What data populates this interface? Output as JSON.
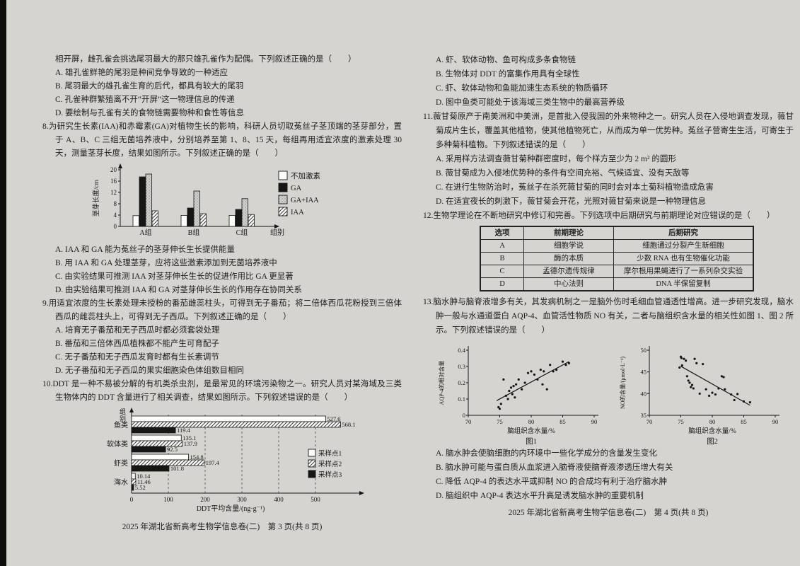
{
  "left": {
    "q7": {
      "lead": "相开屏，雌孔雀会挑选尾羽最大的那只雄孔雀作为配偶。下列叙述正确的是（　　）",
      "options": [
        "A. 雄孔雀鲜艳的尾羽是种间竞争导致的一种适应",
        "B. 尾羽最大的雄孔雀生育的后代，都具有较大的尾羽",
        "C. 孔雀种群繁殖离不开“开屏”这一物理信息的传递",
        "D. 要绘制与孔雀有关的食物链需要物种和食性等信息"
      ]
    },
    "q8": {
      "lead": "8.为研究生长素(IAA)和赤霉素(GA)对植物生长的影响，科研人员切取菟丝子茎顶端的茎芽部分，置于 A、B、C 三组无菌培养液中，分别培养至第 1、8、15 天，每组再用适宜浓度的激素处理 30 天，测量茎芽长度，结果如图所示。下列叙述正确的是（　　）",
      "options": [
        "A. IAA 和 GA 能为菟丝子的茎芽伸长生长提供能量",
        "B. 用 IAA 和 GA 处理茎芽，应将这些激素添加到无菌培养液中",
        "C. 由实验结果可推测 IAA 对茎芽伸长生长的促进作用比 GA 更显著",
        "D. 由实验结果可推测 IAA 和 GA 对茎芽伸长生长的作用存在协同关系"
      ]
    },
    "q9": {
      "lead": "9.用适宜浓度的生长素处理未授粉的番茄雌蕊柱头，可得到无子番茄；将二倍体西瓜花粉授到三倍体西瓜的雌蕊柱头上，可得到无子西瓜。下列叙述正确的是（　　）",
      "options": [
        "A. 培育无子番茄和无子西瓜时都必须套袋处理",
        "B. 番茄和三倍体西瓜植株都不能产生可育配子",
        "C. 无子番茄和无子西瓜发育时都有生长素调节",
        "D. 无子番茄和无子西瓜的果实细胞染色体组数目相同"
      ]
    },
    "q10": {
      "lead": "10.DDT 是一种不易被分解的有机类杀虫剂，是最常见的环境污染物之一。研究人员对某海域及三类生物体内的 DDT 含量进行了相关调查，结果如图所示。下列叙述错误的是（　　）"
    },
    "footer": "2025 年湖北省新高考生物学信息卷(二)　第 3 页(共 8 页)"
  },
  "right": {
    "q10_options": [
      "A. 虾、软体动物、鱼可构成多条食物链",
      "B. 生物体对 DDT 的富集作用具有全球性",
      "C. 虾、软体动物和鱼能加速生态系统的物质循环",
      "D. 图中鱼类可能处于该海域三类生物中的最高营养级"
    ],
    "q11": {
      "lead": "11.薇甘菊原产于南美洲和中美洲，是首批入侵我国的外来物种之一。研究人员在入侵地调查发现，薇甘菊成片生长，覆盖其他植物，使其他植物死亡，从而成为单一优势种。菟丝子营寄生生活，可寄生于多种菊科植物。下列叙述错误的是（　　）",
      "options": [
        "A. 采用样方法调查薇甘菊种群密度时，每个样方至少为 2 m² 的圆形",
        "B. 薇甘菊成为入侵地优势种的条件有空间充裕、气候适宜、没有天敌等",
        "C. 在进行生物防治时，菟丝子在杀死薇甘菊的同时会对本土菊科植物造成危害",
        "D. 在适宜夜长的刺激下，薇甘菊会开花，光照对薇甘菊来说是一种物理信息"
      ]
    },
    "q12": {
      "lead": "12.生物学理论在不断地研究中修订和完善。下列选项中后期研究与前期理论对应错误的是（　　）",
      "table": {
        "headers": [
          "选项",
          "前期理论",
          "后期研究"
        ],
        "rows": [
          [
            "A",
            "细胞学说",
            "细胞通过分裂产生新细胞"
          ],
          [
            "B",
            "酶的本质",
            "少数 RNA 也有生物催化功能"
          ],
          [
            "C",
            "孟德尔遗传规律",
            "摩尔根用果蝇进行了一系列杂交实验"
          ],
          [
            "D",
            "中心法则",
            "DNA 半保留复制"
          ]
        ]
      }
    },
    "q13": {
      "lead": "13.脑水肿与脑脊液增多有关，其发病机制之一是脑外伤时毛细血管通透性增高。进一步研究发现，脑水肿一般与水通道蛋白 AQP-4、血管活性物质 NO 有关，二者与脑组织含水量的相关性如图 1、图 2 所示。下列叙述错误的是（　　）",
      "options": [
        "A. 脑水肿会使脑细胞的内环境中一些化学成分的含量发生变化",
        "B. 脑水肿可能与蛋白质从血浆进入脑脊液使脑脊液渗透压增大有关",
        "C. 降低 AQP-4 的表达水平或抑制 NO 的合成均有利于治疗脑水肿",
        "D. 脑组织中 AQP-4 表达水平升高是诱发脑水肿的重要机制"
      ]
    },
    "footer": "2025 年湖北省新高考生物学信息卷(二)　第 4 页(共 8 页)"
  },
  "chart_data": [
    {
      "type": "bar",
      "title": "",
      "ylabel": "茎芽长度/cm",
      "xlabel": "组别",
      "ylim": [
        0,
        20
      ],
      "yticks": [
        0,
        4,
        8,
        12,
        16,
        20
      ],
      "categories": [
        "A组",
        "B组",
        "C组"
      ],
      "series": [
        {
          "name": "不加激素",
          "style": "white",
          "values": [
            3.8,
            3.9,
            3.9
          ]
        },
        {
          "name": "GA",
          "style": "black",
          "values": [
            17.5,
            6.5,
            6.0
          ]
        },
        {
          "name": "GA+IAA",
          "style": "dots",
          "values": [
            18.5,
            12.5,
            9.8
          ]
        },
        {
          "name": "IAA",
          "style": "hatch",
          "values": [
            5.5,
            4.5,
            4.2
          ]
        }
      ],
      "legend_position": "right",
      "grid": false
    },
    {
      "type": "hbar",
      "title": "",
      "xlabel": "DDT平均含量/(ng·g⁻¹)",
      "ylabel": "组别",
      "xlim": [
        0,
        590
      ],
      "xticks": [
        0,
        100,
        200,
        300,
        400,
        500
      ],
      "categories": [
        "鱼类",
        "软体类",
        "虾类",
        "海水"
      ],
      "series": [
        {
          "name": "采样点1",
          "style": "white",
          "values": [
            527.6,
            135.1,
            154.8,
            10.14
          ]
        },
        {
          "name": "采样点2",
          "style": "hatch",
          "values": [
            568.1,
            137.9,
            197.4,
            11.46
          ]
        },
        {
          "name": "采样点3",
          "style": "black",
          "values": [
            119.4,
            92.5,
            101.8,
            5.52
          ]
        }
      ],
      "value_labels": true,
      "legend_position": "right",
      "grid": "dashed-vertical"
    },
    {
      "type": "scatter",
      "caption": "图1",
      "xlabel": "脑组织含水量/%",
      "ylabel": "AQP-4的相对含量",
      "xlim": [
        70,
        90
      ],
      "xticks": [
        70,
        75,
        80,
        85,
        90
      ],
      "ylim": [
        0,
        0.4
      ],
      "yticks": [
        0,
        0.1,
        0.2,
        0.3,
        0.4
      ],
      "correlation": "positive",
      "points": [
        [
          74.8,
          0.05
        ],
        [
          75.0,
          0.04
        ],
        [
          75.2,
          0.07
        ],
        [
          75.6,
          0.22
        ],
        [
          76.0,
          0.12
        ],
        [
          76.3,
          0.1
        ],
        [
          76.5,
          0.15
        ],
        [
          76.8,
          0.17
        ],
        [
          77.0,
          0.13
        ],
        [
          77.2,
          0.18
        ],
        [
          77.4,
          0.11
        ],
        [
          77.6,
          0.19
        ],
        [
          78.0,
          0.22
        ],
        [
          78.5,
          0.16
        ],
        [
          79.0,
          0.2
        ],
        [
          79.5,
          0.26
        ],
        [
          80.0,
          0.27
        ],
        [
          80.5,
          0.25
        ],
        [
          81.0,
          0.22
        ],
        [
          81.5,
          0.28
        ],
        [
          81.8,
          0.19
        ],
        [
          82.0,
          0.27
        ],
        [
          82.5,
          0.16
        ],
        [
          83.0,
          0.31
        ],
        [
          83.5,
          0.27
        ],
        [
          84.0,
          0.28
        ],
        [
          85.0,
          0.33
        ],
        [
          85.5,
          0.31
        ],
        [
          86.0,
          0.32
        ]
      ],
      "trend": [
        [
          74.5,
          0.09
        ],
        [
          86,
          0.33
        ]
      ]
    },
    {
      "type": "scatter",
      "caption": "图2",
      "xlabel": "脑组织含水量/%",
      "ylabel": "NO的含量/(μmol·L⁻¹)",
      "xlim": [
        70,
        90
      ],
      "xticks": [
        70,
        75,
        80,
        85,
        90
      ],
      "ylim": [
        35,
        50
      ],
      "yticks": [
        35,
        40,
        45,
        50
      ],
      "correlation": "negative",
      "points": [
        [
          74.8,
          46.0
        ],
        [
          75.0,
          48.5
        ],
        [
          75.1,
          48.2
        ],
        [
          75.2,
          46.5
        ],
        [
          75.5,
          48.0
        ],
        [
          75.8,
          47.6
        ],
        [
          76.0,
          44.0
        ],
        [
          76.2,
          43.0
        ],
        [
          76.4,
          42.5
        ],
        [
          76.6,
          41.5
        ],
        [
          76.8,
          42.0
        ],
        [
          77.0,
          41.2
        ],
        [
          77.2,
          48.0
        ],
        [
          77.5,
          47.0
        ],
        [
          78.0,
          40.0
        ],
        [
          78.5,
          46.8
        ],
        [
          79.0,
          41.0
        ],
        [
          79.5,
          39.5
        ],
        [
          80.0,
          40.2
        ],
        [
          80.5,
          39.8
        ],
        [
          81.0,
          41.2
        ],
        [
          81.5,
          44.0
        ],
        [
          81.8,
          43.8
        ],
        [
          82.0,
          41.0
        ],
        [
          83.0,
          39.8
        ],
        [
          83.5,
          38.5
        ],
        [
          84.0,
          39.9
        ],
        [
          85.0,
          38.2
        ],
        [
          86.0,
          38.0
        ]
      ],
      "trend": [
        [
          75,
          46.3
        ],
        [
          86,
          37.3
        ]
      ]
    }
  ]
}
